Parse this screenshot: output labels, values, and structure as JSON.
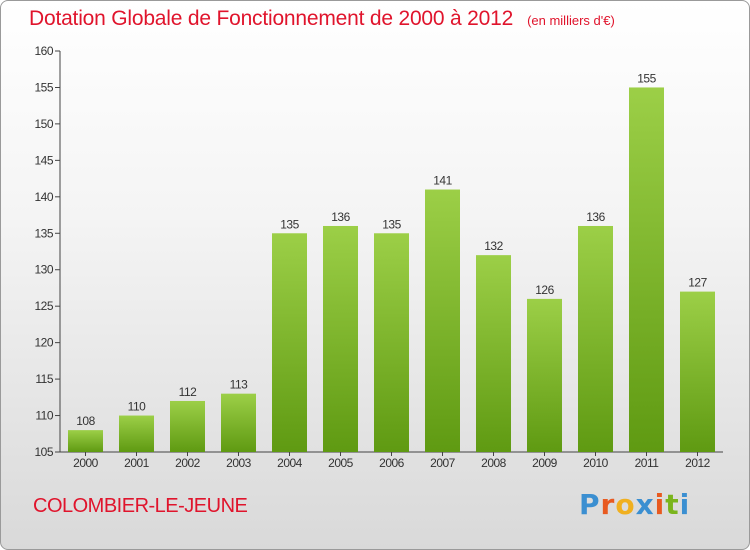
{
  "header": {
    "title": "Dotation Globale de Fonctionnement de 2000 à 2012",
    "unit": "(en milliers d'€)"
  },
  "footer": {
    "commune": "COLOMBIER-LE-JEUNE",
    "logo_letters": [
      "P",
      "r",
      "o",
      "x",
      "i",
      "t",
      "i"
    ],
    "logo_colors": [
      "#3b8fd1",
      "#e85a20",
      "#f0b020",
      "#3b8fd1",
      "#e85a20",
      "#7ab51d",
      "#3b8fd1"
    ]
  },
  "chart_data": {
    "type": "bar",
    "title": "Dotation Globale de Fonctionnement de 2000 à 2012",
    "subtitle": "(en milliers d'€)",
    "categories": [
      "2000",
      "2001",
      "2002",
      "2003",
      "2004",
      "2005",
      "2006",
      "2007",
      "2008",
      "2009",
      "2010",
      "2011",
      "2012"
    ],
    "values": [
      108,
      110,
      112,
      113,
      135,
      136,
      135,
      141,
      132,
      126,
      136,
      155,
      127
    ],
    "ylim": [
      105,
      160
    ],
    "yticks": [
      105,
      110,
      115,
      120,
      125,
      130,
      135,
      140,
      145,
      150,
      155,
      160
    ],
    "grid": false,
    "bar_color_light": "#9ccf47",
    "bar_color_dark": "#5f9a12"
  }
}
